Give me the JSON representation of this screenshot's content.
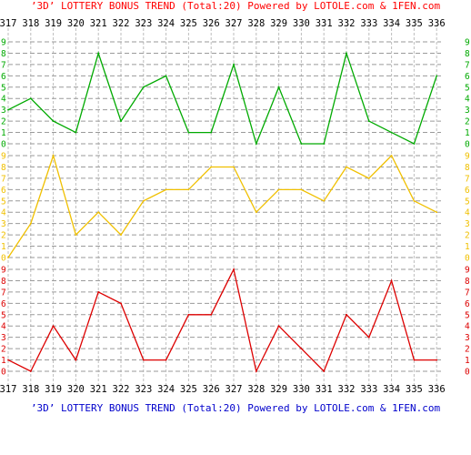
{
  "chart_data": {
    "type": "line",
    "title": "’3D’ LOTTERY BONUS TREND (Total:20)  Powered by LOTOLE.com & 1FEN.com",
    "footer": "’3D’ LOTTERY BONUS TREND (Total:20)  Powered by LOTOLE.com & 1FEN.com",
    "categories": [
      "317",
      "318",
      "319",
      "320",
      "321",
      "322",
      "323",
      "324",
      "325",
      "326",
      "327",
      "328",
      "329",
      "330",
      "331",
      "332",
      "333",
      "334",
      "335",
      "336"
    ],
    "digit_labels": [
      "0",
      "1",
      "2",
      "3",
      "4",
      "5",
      "6",
      "7",
      "8",
      "9"
    ],
    "ylim": [
      0,
      9
    ],
    "grid": true,
    "series": [
      {
        "color": "#00aa00",
        "values": [
          3,
          4,
          2,
          1,
          8,
          2,
          5,
          6,
          1,
          1,
          7,
          0,
          5,
          0,
          0,
          8,
          2,
          1,
          0,
          6
        ]
      },
      {
        "color": "#f0c000",
        "values": [
          0,
          3,
          9,
          2,
          4,
          2,
          5,
          6,
          6,
          8,
          8,
          4,
          6,
          6,
          5,
          8,
          7,
          9,
          5,
          4
        ]
      },
      {
        "color": "#dd0000",
        "values": [
          1,
          0,
          4,
          1,
          7,
          6,
          1,
          1,
          5,
          5,
          9,
          0,
          4,
          2,
          0,
          5,
          3,
          8,
          1,
          1
        ]
      }
    ]
  }
}
